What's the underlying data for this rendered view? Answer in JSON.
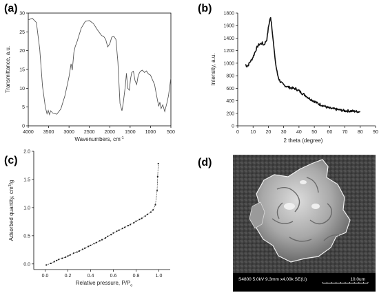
{
  "panels": [
    {
      "label": "(a)"
    },
    {
      "label": "(b)"
    },
    {
      "label": "(c)"
    },
    {
      "label": "(d)"
    }
  ],
  "chart_data": [
    {
      "type": "line",
      "panel": "(a)",
      "xlabel": "Wavenumbers, cm",
      "xlabel_sup": "-1",
      "ylabel": "Transmittance, a.u.",
      "xlim": [
        4000,
        500
      ],
      "ylim": [
        0,
        30
      ],
      "x_ticks": [
        4000,
        3500,
        3000,
        2500,
        2000,
        1500,
        1000,
        500
      ],
      "y_ticks": [
        0,
        5,
        10,
        15,
        20,
        25,
        30
      ],
      "series": [
        {
          "values": [
            [
              4000,
              28.2
            ],
            [
              3900,
              28.6
            ],
            [
              3800,
              27.5
            ],
            [
              3720,
              20.5
            ],
            [
              3650,
              10.5
            ],
            [
              3580,
              5.0
            ],
            [
              3540,
              3.2
            ],
            [
              3510,
              4.1
            ],
            [
              3480,
              3.0
            ],
            [
              3450,
              4.0
            ],
            [
              3400,
              3.4
            ],
            [
              3300,
              3.1
            ],
            [
              3200,
              4.5
            ],
            [
              3100,
              8.0
            ],
            [
              3000,
              13.0
            ],
            [
              2950,
              16.5
            ],
            [
              2920,
              14.8
            ],
            [
              2880,
              19.5
            ],
            [
              2850,
              21.0
            ],
            [
              2800,
              22.5
            ],
            [
              2700,
              26.0
            ],
            [
              2600,
              27.8
            ],
            [
              2500,
              28.0
            ],
            [
              2400,
              27.2
            ],
            [
              2300,
              25.5
            ],
            [
              2200,
              24.0
            ],
            [
              2150,
              23.8
            ],
            [
              2100,
              23.0
            ],
            [
              2050,
              21.0
            ],
            [
              2000,
              21.8
            ],
            [
              1950,
              23.6
            ],
            [
              1900,
              23.8
            ],
            [
              1850,
              23.0
            ],
            [
              1800,
              17.0
            ],
            [
              1750,
              6.0
            ],
            [
              1700,
              4.0
            ],
            [
              1670,
              6.0
            ],
            [
              1620,
              10.5
            ],
            [
              1590,
              14.0
            ],
            [
              1560,
              10.0
            ],
            [
              1520,
              9.5
            ],
            [
              1490,
              12.5
            ],
            [
              1460,
              14.2
            ],
            [
              1420,
              14.5
            ],
            [
              1380,
              12.0
            ],
            [
              1340,
              11.0
            ],
            [
              1300,
              13.5
            ],
            [
              1250,
              14.5
            ],
            [
              1200,
              14.8
            ],
            [
              1150,
              14.2
            ],
            [
              1100,
              14.6
            ],
            [
              1050,
              13.8
            ],
            [
              1000,
              13.5
            ],
            [
              950,
              12.2
            ],
            [
              900,
              11.0
            ],
            [
              850,
              8.0
            ],
            [
              800,
              5.2
            ],
            [
              770,
              6.3
            ],
            [
              740,
              4.6
            ],
            [
              700,
              5.6
            ],
            [
              650,
              3.8
            ],
            [
              600,
              6.0
            ],
            [
              560,
              8.0
            ],
            [
              500,
              12.8
            ]
          ]
        }
      ]
    },
    {
      "type": "line",
      "panel": "(b)",
      "xlabel": "2 theta (degree)",
      "ylabel": "Intensity, a.u.",
      "xlim": [
        0,
        90
      ],
      "ylim": [
        0,
        1800
      ],
      "x_ticks": [
        0,
        10,
        20,
        30,
        40,
        50,
        60,
        70,
        80,
        90
      ],
      "y_ticks": [
        0,
        200,
        400,
        600,
        800,
        1000,
        1200,
        1400,
        1600,
        1800
      ],
      "series": [
        {
          "values": [
            [
              5,
              980
            ],
            [
              6,
              950
            ],
            [
              7,
              975
            ],
            [
              8,
              1020
            ],
            [
              9,
              1050
            ],
            [
              10,
              1100
            ],
            [
              11,
              1160
            ],
            [
              12,
              1220
            ],
            [
              13,
              1270
            ],
            [
              14,
              1300
            ],
            [
              15,
              1310
            ],
            [
              16,
              1320
            ],
            [
              17,
              1290
            ],
            [
              18,
              1330
            ],
            [
              19,
              1380
            ],
            [
              20,
              1560
            ],
            [
              21,
              1700
            ],
            [
              21.5,
              1720
            ],
            [
              22,
              1650
            ],
            [
              23,
              1400
            ],
            [
              24,
              1150
            ],
            [
              25,
              950
            ],
            [
              26,
              820
            ],
            [
              27,
              740
            ],
            [
              28,
              700
            ],
            [
              30,
              650
            ],
            [
              32,
              630
            ],
            [
              34,
              610
            ],
            [
              36,
              600
            ],
            [
              38,
              590
            ],
            [
              40,
              560
            ],
            [
              42,
              520
            ],
            [
              44,
              490
            ],
            [
              46,
              450
            ],
            [
              48,
              420
            ],
            [
              50,
              390
            ],
            [
              52,
              360
            ],
            [
              55,
              330
            ],
            [
              58,
              300
            ],
            [
              60,
              280
            ],
            [
              65,
              260
            ],
            [
              70,
              240
            ],
            [
              75,
              235
            ],
            [
              80,
              225
            ]
          ]
        }
      ]
    },
    {
      "type": "scatter",
      "panel": "(c)",
      "xlabel": "Relative pressure, P/P",
      "xlabel_sub": "o",
      "ylabel": "Adsorbed quantity, cm",
      "ylabel_sup": "3",
      "ylabel_suffix": "/g",
      "xlim": [
        -0.1,
        1.1
      ],
      "ylim": [
        -0.1,
        2.0
      ],
      "x_ticks": [
        0.0,
        0.2,
        0.4,
        0.6,
        0.8,
        1.0
      ],
      "y_ticks": [
        0.0,
        0.5,
        1.0,
        1.5,
        2.0
      ],
      "series": [
        {
          "values": [
            [
              0.01,
              -0.02
            ],
            [
              0.05,
              0.01
            ],
            [
              0.08,
              0.04
            ],
            [
              0.1,
              0.06
            ],
            [
              0.12,
              0.08
            ],
            [
              0.15,
              0.1
            ],
            [
              0.18,
              0.12
            ],
            [
              0.2,
              0.14
            ],
            [
              0.22,
              0.16
            ],
            [
              0.25,
              0.19
            ],
            [
              0.28,
              0.21
            ],
            [
              0.3,
              0.23
            ],
            [
              0.33,
              0.26
            ],
            [
              0.35,
              0.28
            ],
            [
              0.38,
              0.31
            ],
            [
              0.4,
              0.33
            ],
            [
              0.43,
              0.36
            ],
            [
              0.45,
              0.38
            ],
            [
              0.48,
              0.41
            ],
            [
              0.5,
              0.43
            ],
            [
              0.53,
              0.46
            ],
            [
              0.55,
              0.49
            ],
            [
              0.58,
              0.52
            ],
            [
              0.6,
              0.55
            ],
            [
              0.63,
              0.58
            ],
            [
              0.65,
              0.6
            ],
            [
              0.68,
              0.63
            ],
            [
              0.7,
              0.65
            ],
            [
              0.73,
              0.68
            ],
            [
              0.75,
              0.7
            ],
            [
              0.78,
              0.73
            ],
            [
              0.8,
              0.76
            ],
            [
              0.83,
              0.79
            ],
            [
              0.85,
              0.81
            ],
            [
              0.88,
              0.85
            ],
            [
              0.9,
              0.88
            ],
            [
              0.93,
              0.92
            ],
            [
              0.95,
              0.96
            ],
            [
              0.97,
              1.05
            ],
            [
              0.985,
              1.3
            ],
            [
              0.99,
              1.55
            ],
            [
              0.995,
              1.78
            ]
          ]
        }
      ]
    }
  ],
  "sem": {
    "panel": "(d)",
    "caption": "S4800 5.0kV 9.3mm x4.00k SE(U)",
    "scale_label": "10.0um"
  }
}
